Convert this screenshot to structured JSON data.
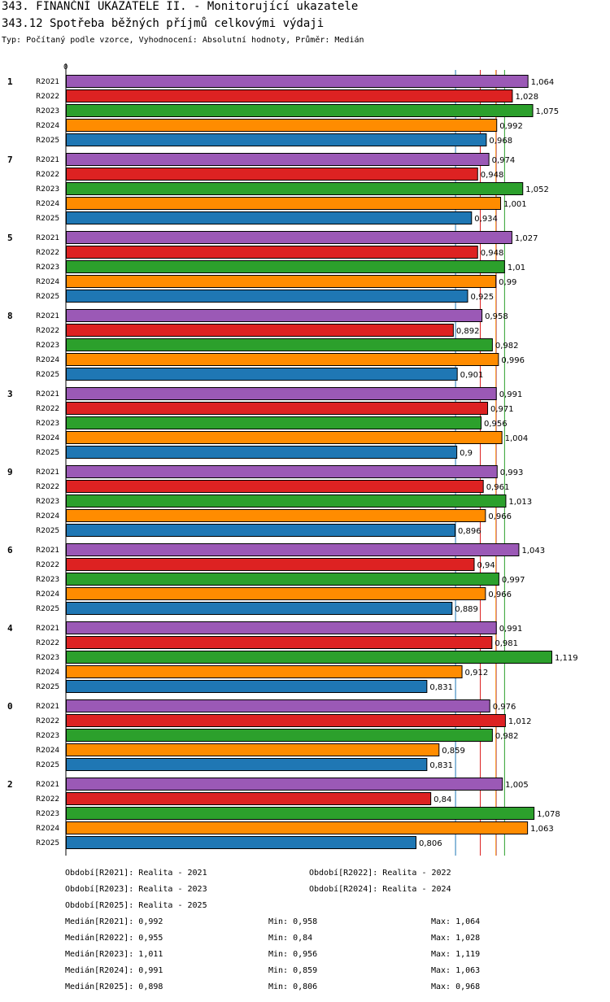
{
  "header": {
    "title": "343. FINANČNÍ UKAZATELE II. - Monitorující ukazatele",
    "subtitle": "343.12 Spotřeba běžných příjmů celkovými výdaji",
    "type_line": "Typ: Počítaný podle vzorce, Vyhodnocení: Absolutní hodnoty, Průměr: Medián"
  },
  "chart_data": {
    "type": "bar",
    "orientation": "horizontal",
    "axis_zero_label": "0",
    "series_names": [
      "R2021",
      "R2022",
      "R2023",
      "R2024",
      "R2025"
    ],
    "colors": {
      "R2021": "#9b59b6",
      "R2022": "#dd2222",
      "R2023": "#2ca02c",
      "R2024": "#ff8c00",
      "R2025": "#1f77b4"
    },
    "groups": [
      {
        "label": "1",
        "values": [
          1.064,
          1.028,
          1.075,
          0.992,
          0.968
        ],
        "labels": [
          "1,064",
          "1,028",
          "1,075",
          "0,992",
          "0,968"
        ]
      },
      {
        "label": "7",
        "values": [
          0.974,
          0.948,
          1.052,
          1.001,
          0.934
        ],
        "labels": [
          "0,974",
          "0,948",
          "1,052",
          "1,001",
          "0,934"
        ]
      },
      {
        "label": "5",
        "values": [
          1.027,
          0.948,
          1.01,
          0.99,
          0.925
        ],
        "labels": [
          "1,027",
          "0,948",
          "1,01",
          "0,99",
          "0,925"
        ]
      },
      {
        "label": "8",
        "values": [
          0.958,
          0.892,
          0.982,
          0.996,
          0.901
        ],
        "labels": [
          "0,958",
          "0,892",
          "0,982",
          "0,996",
          "0,901"
        ]
      },
      {
        "label": "3",
        "values": [
          0.991,
          0.971,
          0.956,
          1.004,
          0.9
        ],
        "labels": [
          "0,991",
          "0,971",
          "0,956",
          "1,004",
          "0,9"
        ]
      },
      {
        "label": "9",
        "values": [
          0.993,
          0.961,
          1.013,
          0.966,
          0.896
        ],
        "labels": [
          "0,993",
          "0,961",
          "1,013",
          "0,966",
          "0,896"
        ]
      },
      {
        "label": "6",
        "values": [
          1.043,
          0.94,
          0.997,
          0.966,
          0.889
        ],
        "labels": [
          "1,043",
          "0,94",
          "0,997",
          "0,966",
          "0,889"
        ]
      },
      {
        "label": "4",
        "values": [
          0.991,
          0.981,
          1.119,
          0.912,
          0.831
        ],
        "labels": [
          "0,991",
          "0,981",
          "1,119",
          "0,912",
          "0,831"
        ]
      },
      {
        "label": "0",
        "values": [
          0.976,
          1.012,
          0.982,
          0.859,
          0.831
        ],
        "labels": [
          "0,976",
          "1,012",
          "0,982",
          "0,859",
          "0,831"
        ]
      },
      {
        "label": "2",
        "values": [
          1.005,
          0.84,
          1.078,
          1.063,
          0.806
        ],
        "labels": [
          "1,005",
          "0,84",
          "1,078",
          "1,063",
          "0,806"
        ]
      }
    ],
    "median_lines": [
      {
        "series": "R2021",
        "value": 0.992
      },
      {
        "series": "R2022",
        "value": 0.955
      },
      {
        "series": "R2023",
        "value": 1.011
      },
      {
        "series": "R2024",
        "value": 0.991
      },
      {
        "series": "R2025",
        "value": 0.898
      }
    ],
    "xlim": [
      0,
      1.15
    ]
  },
  "legend": {
    "periods": [
      "Období[R2021]: Realita - 2021",
      "Období[R2022]: Realita - 2022",
      "Období[R2023]: Realita - 2023",
      "Období[R2024]: Realita - 2024",
      "Období[R2025]: Realita - 2025"
    ],
    "stats": [
      {
        "median": "Medián[R2021]: 0,992",
        "min": "Min: 0,958",
        "max": "Max: 1,064"
      },
      {
        "median": "Medián[R2022]: 0,955",
        "min": "Min: 0,84",
        "max": "Max: 1,028"
      },
      {
        "median": "Medián[R2023]: 1,011",
        "min": "Min: 0,956",
        "max": "Max: 1,119"
      },
      {
        "median": "Medián[R2024]: 0,991",
        "min": "Min: 0,859",
        "max": "Max: 1,063"
      },
      {
        "median": "Medián[R2025]: 0,898",
        "min": "Min: 0,806",
        "max": "Max: 0,968"
      }
    ]
  }
}
